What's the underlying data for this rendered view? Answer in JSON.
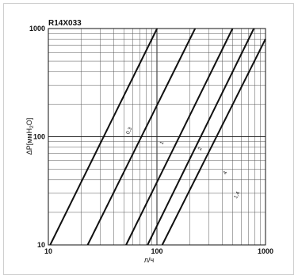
{
  "chart_data": {
    "type": "line",
    "title": "R14X033",
    "xlabel": "л/ч",
    "ylabel": "ΔP[ммН",
    "ylabel_sub": "2",
    "ylabel_end": "O]",
    "xscale": "log",
    "yscale": "log",
    "xlim": [
      10,
      1000
    ],
    "ylim": [
      10,
      1000
    ],
    "x_ticks": [
      "10",
      "100",
      "1000"
    ],
    "y_ticks": [
      "10",
      "100",
      "1000"
    ],
    "grid": true,
    "series": [
      {
        "name": "0,3",
        "x": [
          10.4,
          100.3
        ],
        "y": [
          10,
          1000
        ],
        "label_at": [
          60,
          110
        ]
      },
      {
        "name": "1",
        "x": [
          23.0,
          225.0
        ],
        "y": [
          10,
          1000
        ],
        "label_at": [
          120,
          85
        ]
      },
      {
        "name": "2",
        "x": [
          52.0,
          497.0
        ],
        "y": [
          10,
          1000
        ],
        "label_at": [
          270,
          75
        ]
      },
      {
        "name": "4",
        "x": [
          82.0,
          781.0
        ],
        "y": [
          10,
          1000
        ],
        "label_at": [
          460,
          45
        ]
      },
      {
        "name": "1,4",
        "x": [
          112.0,
          1000.0
        ],
        "y": [
          10,
          800
        ],
        "label_at": [
          590,
          28
        ]
      }
    ]
  }
}
